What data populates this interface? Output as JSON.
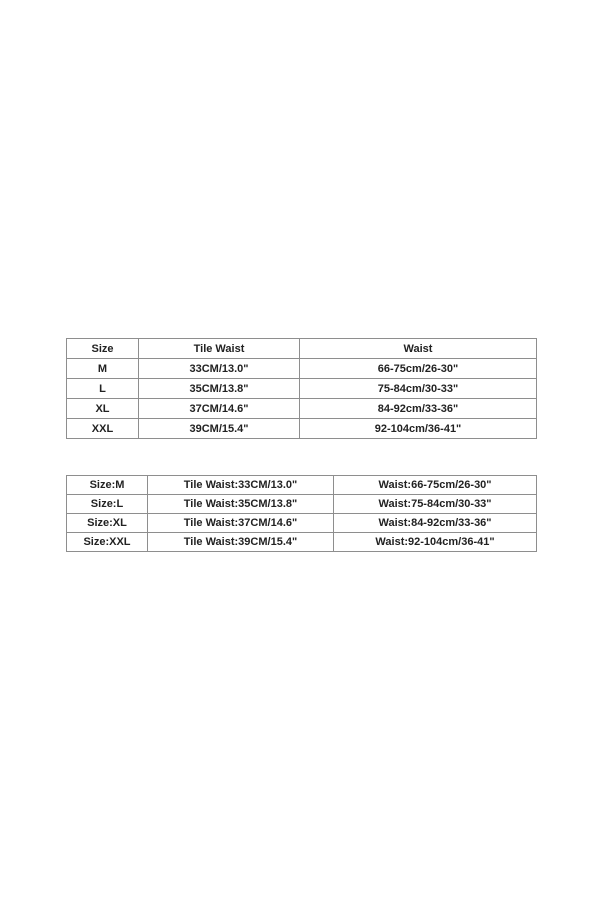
{
  "colors": {
    "background": "#ffffff",
    "table_border": "#8e8e8e",
    "text": "#222222"
  },
  "chart_data": [
    {
      "type": "table",
      "title": "",
      "columns": [
        "Size",
        "Tile Waist",
        "Waist"
      ],
      "rows": [
        [
          "M",
          "33CM/13.0\"",
          "66-75cm/26-30\""
        ],
        [
          "L",
          "35CM/13.8\"",
          "75-84cm/30-33\""
        ],
        [
          "XL",
          "37CM/14.6\"",
          "84-92cm/33-36\""
        ],
        [
          "XXL",
          "39CM/15.4\"",
          "92-104cm/36-41\""
        ]
      ]
    },
    {
      "type": "table",
      "title": "",
      "columns": [],
      "rows": [
        [
          "Size:M",
          "Tile Waist:33CM/13.0\"",
          "Waist:66-75cm/26-30\""
        ],
        [
          "Size:L",
          "Tile Waist:35CM/13.8\"",
          "Waist:75-84cm/30-33\""
        ],
        [
          "Size:XL",
          "Tile Waist:37CM/14.6\"",
          "Waist:84-92cm/33-36\""
        ],
        [
          "Size:XXL",
          "Tile Waist:39CM/15.4\"",
          "Waist:92-104cm/36-41\""
        ]
      ]
    }
  ]
}
